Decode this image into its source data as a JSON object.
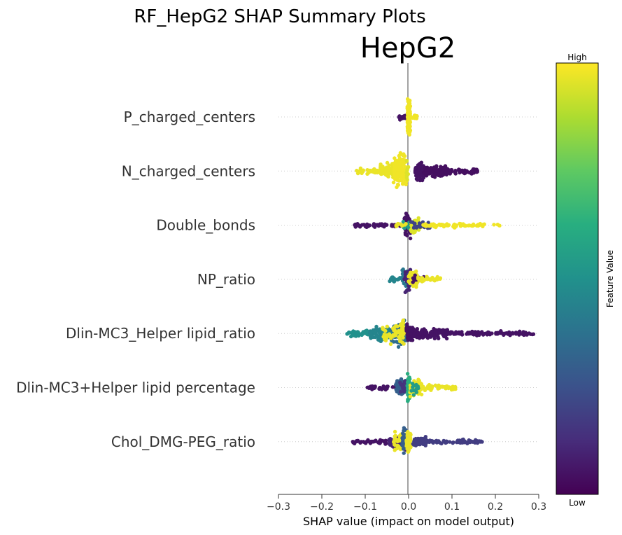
{
  "suptitle": "RF_HepG2 SHAP Summary Plots",
  "chart_data": {
    "type": "scatter",
    "subtype": "shap-beeswarm",
    "title": "HepG2",
    "xlabel": "SHAP value (impact on model output)",
    "xlim": [
      -0.3,
      0.3
    ],
    "xticks": [
      -0.3,
      -0.2,
      -0.1,
      0.0,
      0.1,
      0.2,
      0.3
    ],
    "xtick_labels": [
      "−0.3",
      "−0.2",
      "−0.1",
      "0.0",
      "0.1",
      "0.2",
      "0.3"
    ],
    "grid": false,
    "colormap": "viridis",
    "colorbar": {
      "label": "Feature Value",
      "high": "High",
      "low": "Low"
    },
    "features": [
      {
        "name": "P_charged_centers",
        "groups": [
          {
            "range": [
              -0.025,
              0.0
            ],
            "value": 0.05,
            "n": 14,
            "spread": 6
          },
          {
            "range": [
              -0.003,
              0.004
            ],
            "value": 0.98,
            "n": 110,
            "spread": 34
          },
          {
            "range": [
              0.004,
              0.022
            ],
            "value": 0.98,
            "n": 10,
            "spread": 4
          }
        ]
      },
      {
        "name": "N_charged_centers",
        "groups": [
          {
            "range": [
              -0.125,
              -0.065
            ],
            "value": 0.97,
            "n": 40,
            "spread": 5
          },
          {
            "range": [
              -0.065,
              -0.035
            ],
            "value": 0.97,
            "n": 70,
            "spread": 14
          },
          {
            "range": [
              -0.035,
              -0.005
            ],
            "value": 0.98,
            "n": 140,
            "spread": 30
          },
          {
            "range": [
              -0.005,
              0.0
            ],
            "value": 0.95,
            "n": 14,
            "spread": 20
          },
          {
            "range": [
              0.015,
              0.035
            ],
            "value": 0.05,
            "n": 70,
            "spread": 17
          },
          {
            "range": [
              0.035,
              0.09
            ],
            "value": 0.04,
            "n": 130,
            "spread": 10
          },
          {
            "range": [
              0.09,
              0.16
            ],
            "value": 0.04,
            "n": 60,
            "spread": 5
          }
        ]
      },
      {
        "name": "Double_bonds",
        "groups": [
          {
            "range": [
              -0.125,
              -0.015
            ],
            "value": 0.05,
            "n": 60,
            "spread": 4
          },
          {
            "range": [
              -0.01,
              0.005
            ],
            "value": 0.05,
            "n": 50,
            "spread": 28
          },
          {
            "range": [
              -0.015,
              0.015
            ],
            "value": 0.55,
            "n": 20,
            "spread": 8
          },
          {
            "range": [
              -0.03,
              -0.005
            ],
            "value": 0.97,
            "n": 12,
            "spread": 5
          },
          {
            "range": [
              0.005,
              0.03
            ],
            "value": 0.95,
            "n": 40,
            "spread": 15
          },
          {
            "range": [
              0.005,
              0.05
            ],
            "value": 0.2,
            "n": 25,
            "spread": 8
          },
          {
            "range": [
              0.03,
              0.175
            ],
            "value": 0.98,
            "n": 70,
            "spread": 4
          },
          {
            "range": [
              0.195,
              0.21
            ],
            "value": 0.98,
            "n": 3,
            "spread": 2
          }
        ]
      },
      {
        "name": "NP_ratio",
        "groups": [
          {
            "range": [
              -0.045,
              -0.015
            ],
            "value": 0.45,
            "n": 18,
            "spread": 6
          },
          {
            "range": [
              -0.015,
              0.005
            ],
            "value": 0.4,
            "n": 40,
            "spread": 20
          },
          {
            "range": [
              -0.01,
              0.005
            ],
            "value": 0.1,
            "n": 20,
            "spread": 26
          },
          {
            "range": [
              0.0,
              0.02
            ],
            "value": 0.97,
            "n": 50,
            "spread": 18
          },
          {
            "range": [
              0.01,
              0.035
            ],
            "value": 0.05,
            "n": 12,
            "spread": 10
          },
          {
            "range": [
              0.02,
              0.075
            ],
            "value": 0.97,
            "n": 30,
            "spread": 7
          }
        ]
      },
      {
        "name": "Dlin-MC3_Helper lipid_ratio",
        "groups": [
          {
            "range": [
              -0.145,
              -0.09
            ],
            "value": 0.5,
            "n": 40,
            "spread": 6
          },
          {
            "range": [
              -0.09,
              -0.04
            ],
            "value": 0.45,
            "n": 80,
            "spread": 15
          },
          {
            "range": [
              -0.04,
              -0.005
            ],
            "value": 0.35,
            "n": 90,
            "spread": 24
          },
          {
            "range": [
              -0.06,
              -0.005
            ],
            "value": 0.97,
            "n": 50,
            "spread": 20
          },
          {
            "range": [
              -0.02,
              -0.005
            ],
            "value": 0.97,
            "n": 18,
            "spread": 30
          },
          {
            "range": [
              -0.005,
              0.012
            ],
            "value": 0.05,
            "n": 60,
            "spread": 18
          },
          {
            "range": [
              0.012,
              0.09
            ],
            "value": 0.05,
            "n": 100,
            "spread": 9
          },
          {
            "range": [
              0.05,
              0.08
            ],
            "value": 0.05,
            "n": 30,
            "spread": 8
          },
          {
            "range": [
              0.09,
              0.29
            ],
            "value": 0.05,
            "n": 100,
            "spread": 4
          }
        ]
      },
      {
        "name": "Dlin-MC3+Helper lipid percentage",
        "groups": [
          {
            "range": [
              -0.095,
              -0.03
            ],
            "value": 0.05,
            "n": 30,
            "spread": 4
          },
          {
            "range": [
              -0.03,
              -0.005
            ],
            "value": 0.3,
            "n": 60,
            "spread": 18
          },
          {
            "range": [
              -0.02,
              0.0
            ],
            "value": 0.15,
            "n": 25,
            "spread": 12
          },
          {
            "range": [
              -0.003,
              0.003
            ],
            "value": 0.62,
            "n": 60,
            "spread": 28
          },
          {
            "range": [
              0.003,
              0.03
            ],
            "value": 0.97,
            "n": 60,
            "spread": 16
          },
          {
            "range": [
              0.005,
              0.025
            ],
            "value": 0.55,
            "n": 15,
            "spread": 12
          },
          {
            "range": [
              0.03,
              0.11
            ],
            "value": 0.97,
            "n": 40,
            "spread": 5
          }
        ]
      },
      {
        "name": "Chol_DMG-PEG_ratio",
        "groups": [
          {
            "range": [
              -0.13,
              -0.045
            ],
            "value": 0.05,
            "n": 40,
            "spread": 4
          },
          {
            "range": [
              -0.045,
              -0.005
            ],
            "value": 0.1,
            "n": 60,
            "spread": 15
          },
          {
            "range": [
              -0.035,
              -0.005
            ],
            "value": 0.97,
            "n": 40,
            "spread": 18
          },
          {
            "range": [
              -0.015,
              -0.005
            ],
            "value": 0.3,
            "n": 30,
            "spread": 28
          },
          {
            "range": [
              -0.005,
              0.005
            ],
            "value": 0.97,
            "n": 60,
            "spread": 20
          },
          {
            "range": [
              0.01,
              0.04
            ],
            "value": 0.18,
            "n": 60,
            "spread": 10
          },
          {
            "range": [
              0.04,
              0.17
            ],
            "value": 0.18,
            "n": 70,
            "spread": 4
          }
        ]
      }
    ]
  }
}
